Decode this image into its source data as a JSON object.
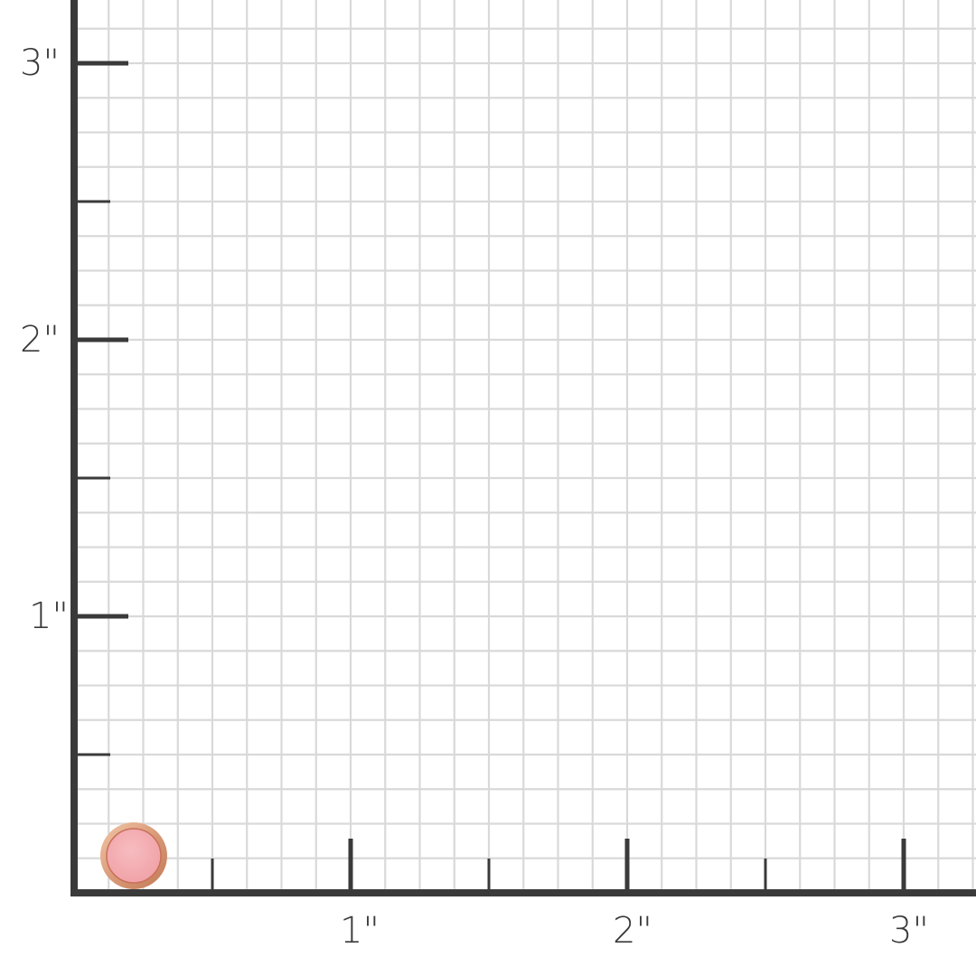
{
  "scale": {
    "unit": "inch",
    "x_labels": [
      "1\"",
      "2\"",
      "3\""
    ],
    "y_labels": [
      "1\"",
      "2\"",
      "3\""
    ],
    "grid_subdivisions_per_inch": 8
  },
  "item": {
    "name": "pink gemstone bezel stud",
    "gem_color": "#f0a3a8",
    "metal_color": "#d99a78"
  },
  "colors": {
    "axis": "#3a3a3a",
    "grid": "#d9d9d9"
  }
}
